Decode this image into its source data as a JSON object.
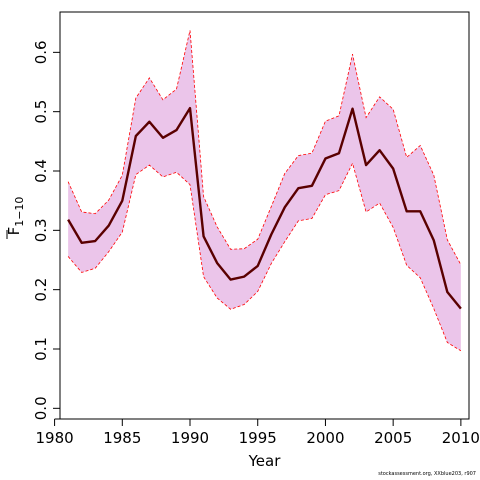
{
  "chart_data": {
    "type": "line",
    "title": "",
    "xlabel": "Year",
    "ylabel_main": "F",
    "ylabel_sub": "1−10",
    "xlim": [
      1980.4,
      2010.6
    ],
    "ylim": [
      -0.018,
      0.668
    ],
    "xticks": [
      1980,
      1985,
      1990,
      1995,
      2000,
      2005,
      2010
    ],
    "yticks": [
      "0.0",
      "0.1",
      "0.2",
      "0.3",
      "0.4",
      "0.5",
      "0.6"
    ],
    "x": [
      1981,
      1982,
      1983,
      1984,
      1985,
      1986,
      1987,
      1988,
      1989,
      1990,
      1991,
      1992,
      1993,
      1994,
      1995,
      1996,
      1997,
      1998,
      1999,
      2000,
      2001,
      2002,
      2003,
      2004,
      2005,
      2006,
      2007,
      2008,
      2009,
      2010
    ],
    "series": [
      {
        "role": "estimate",
        "color": "#5a0000",
        "values": [
          0.318,
          0.279,
          0.282,
          0.308,
          0.35,
          0.459,
          0.483,
          0.456,
          0.469,
          0.506,
          0.29,
          0.245,
          0.217,
          0.222,
          0.24,
          0.293,
          0.339,
          0.371,
          0.375,
          0.421,
          0.43,
          0.505,
          0.41,
          0.435,
          0.404,
          0.332,
          0.332,
          0.283,
          0.196,
          0.168
        ]
      },
      {
        "role": "upper",
        "color": "#ff0000",
        "values": [
          0.382,
          0.331,
          0.328,
          0.351,
          0.393,
          0.523,
          0.557,
          0.52,
          0.538,
          0.637,
          0.357,
          0.306,
          0.268,
          0.269,
          0.285,
          0.34,
          0.396,
          0.426,
          0.43,
          0.484,
          0.493,
          0.597,
          0.49,
          0.525,
          0.504,
          0.423,
          0.443,
          0.393,
          0.284,
          0.242
        ]
      },
      {
        "role": "lower",
        "color": "#ff0000",
        "values": [
          0.256,
          0.229,
          0.236,
          0.264,
          0.297,
          0.394,
          0.41,
          0.39,
          0.398,
          0.377,
          0.222,
          0.186,
          0.167,
          0.175,
          0.197,
          0.244,
          0.281,
          0.316,
          0.32,
          0.36,
          0.367,
          0.413,
          0.331,
          0.346,
          0.305,
          0.241,
          0.22,
          0.168,
          0.111,
          0.097
        ]
      }
    ],
    "band_fill": "#ebc5ea",
    "grid": false,
    "legend": "none"
  },
  "footer": "stockassessment.org, XXblue203, r907"
}
